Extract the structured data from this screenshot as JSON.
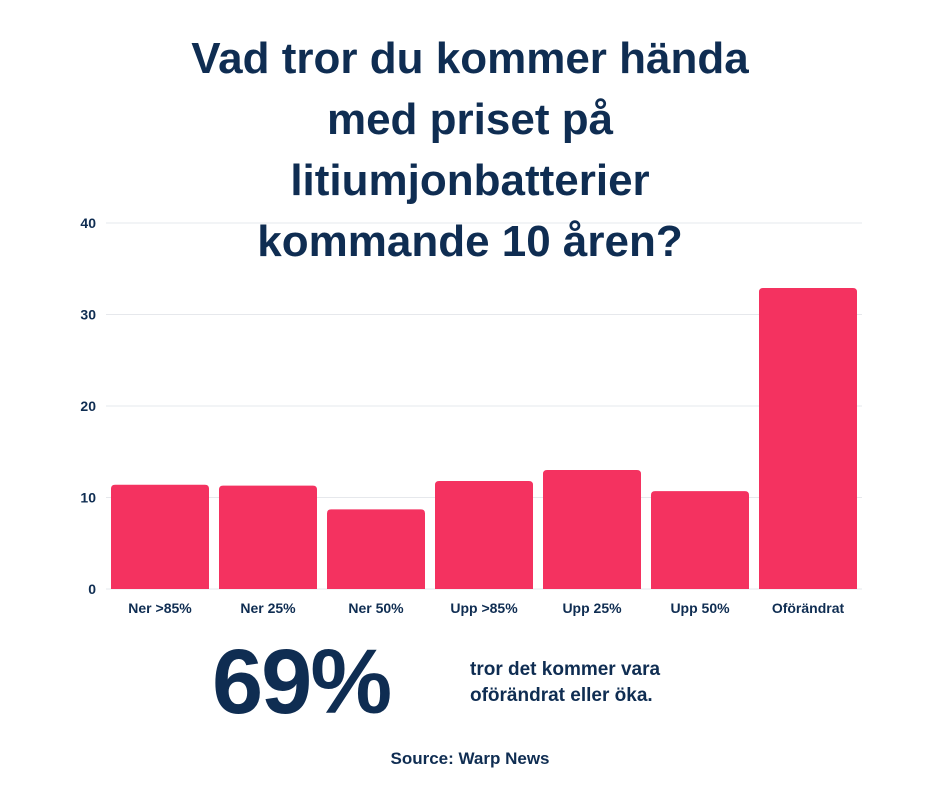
{
  "title_lines": [
    "Vad tror du kommer hända",
    "med priset på",
    "litiumjonbatterier",
    "kommande 10 åren?"
  ],
  "colors": {
    "bar": "#f43260",
    "text": "#0f2d52",
    "grid": "#e6e8ec"
  },
  "chart_data": {
    "type": "bar",
    "categories": [
      "Ner >85%",
      "Ner 25%",
      "Ner 50%",
      "Upp >85%",
      "Upp 25%",
      "Upp 50%",
      "Oförändrat"
    ],
    "values": [
      11.4,
      11.3,
      8.7,
      11.8,
      13.0,
      10.7,
      32.9
    ],
    "yticks": [
      0,
      10,
      20,
      30,
      40
    ],
    "ylim": [
      0,
      40
    ],
    "grid": true,
    "xlabel": "",
    "ylabel": ""
  },
  "stat": {
    "number": "69%",
    "text_lines": [
      "tror det kommer vara",
      "oförändrat eller öka."
    ]
  },
  "source": "Source: Warp News"
}
